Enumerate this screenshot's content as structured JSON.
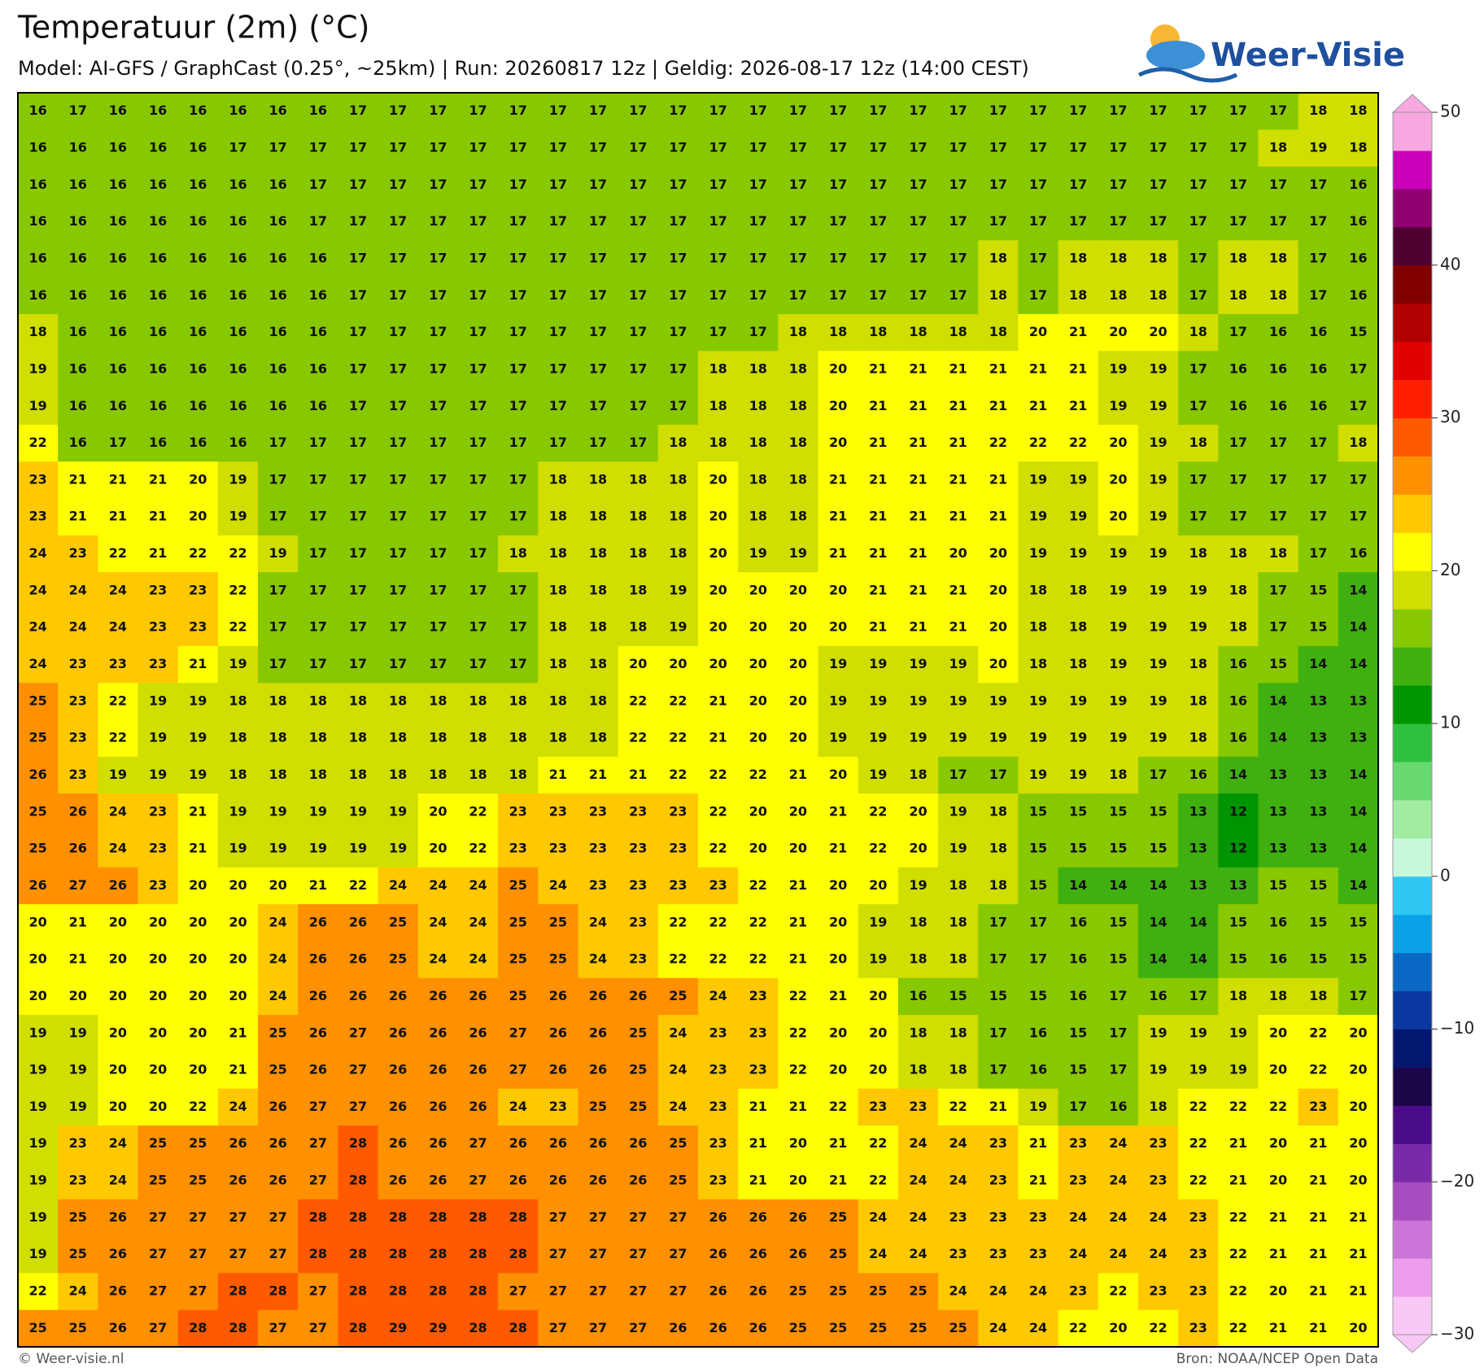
{
  "chart_data": {
    "type": "heatmap",
    "title": "Temperatuur (2m) (°C)",
    "subtitle": "Model: AI-GFS / GraphCast (0.25°, ~25km)  |  Run: 20260817 12z  |  Geldig: 2026-08-17 12z (14:00 CEST)",
    "values": [
      [
        16,
        17,
        16,
        16,
        16,
        16,
        16,
        16,
        17,
        17,
        17,
        17,
        17,
        17,
        17,
        17,
        17,
        17,
        17,
        17,
        17,
        17,
        17,
        17,
        17,
        17,
        17,
        17,
        17,
        17,
        17,
        17,
        18,
        18
      ],
      [
        16,
        16,
        16,
        16,
        16,
        17,
        17,
        17,
        17,
        17,
        17,
        17,
        17,
        17,
        17,
        17,
        17,
        17,
        17,
        17,
        17,
        17,
        17,
        17,
        17,
        17,
        17,
        17,
        17,
        17,
        17,
        18,
        19,
        18
      ],
      [
        16,
        16,
        16,
        16,
        16,
        16,
        16,
        17,
        17,
        17,
        17,
        17,
        17,
        17,
        17,
        17,
        17,
        17,
        17,
        17,
        17,
        17,
        17,
        17,
        17,
        17,
        17,
        17,
        17,
        17,
        17,
        17,
        17,
        16
      ],
      [
        16,
        16,
        16,
        16,
        16,
        16,
        16,
        17,
        17,
        17,
        17,
        17,
        17,
        17,
        17,
        17,
        17,
        17,
        17,
        17,
        17,
        17,
        17,
        17,
        17,
        17,
        17,
        17,
        17,
        17,
        17,
        17,
        17,
        16
      ],
      [
        16,
        16,
        16,
        16,
        16,
        16,
        16,
        16,
        17,
        17,
        17,
        17,
        17,
        17,
        17,
        17,
        17,
        17,
        17,
        17,
        17,
        17,
        17,
        17,
        18,
        17,
        18,
        18,
        18,
        17,
        18,
        18,
        17,
        16
      ],
      [
        16,
        16,
        16,
        16,
        16,
        16,
        16,
        16,
        17,
        17,
        17,
        17,
        17,
        17,
        17,
        17,
        17,
        17,
        17,
        17,
        17,
        17,
        17,
        17,
        18,
        17,
        18,
        18,
        18,
        17,
        18,
        18,
        17,
        16
      ],
      [
        18,
        16,
        16,
        16,
        16,
        16,
        16,
        16,
        17,
        17,
        17,
        17,
        17,
        17,
        17,
        17,
        17,
        17,
        17,
        18,
        18,
        18,
        18,
        18,
        18,
        20,
        21,
        20,
        20,
        18,
        17,
        16,
        16,
        15
      ],
      [
        19,
        16,
        16,
        16,
        16,
        16,
        16,
        16,
        17,
        17,
        17,
        17,
        17,
        17,
        17,
        17,
        17,
        18,
        18,
        18,
        20,
        21,
        21,
        21,
        21,
        21,
        21,
        19,
        19,
        17,
        16,
        16,
        16,
        17
      ],
      [
        19,
        16,
        16,
        16,
        16,
        16,
        16,
        16,
        17,
        17,
        17,
        17,
        17,
        17,
        17,
        17,
        17,
        18,
        18,
        18,
        20,
        21,
        21,
        21,
        21,
        21,
        21,
        19,
        19,
        17,
        16,
        16,
        16,
        17
      ],
      [
        22,
        16,
        17,
        16,
        16,
        16,
        17,
        17,
        17,
        17,
        17,
        17,
        17,
        17,
        17,
        17,
        18,
        18,
        18,
        18,
        20,
        21,
        21,
        21,
        22,
        22,
        22,
        20,
        19,
        18,
        17,
        17,
        17,
        18
      ],
      [
        23,
        21,
        21,
        21,
        20,
        19,
        17,
        17,
        17,
        17,
        17,
        17,
        17,
        18,
        18,
        18,
        18,
        20,
        18,
        18,
        21,
        21,
        21,
        21,
        21,
        19,
        19,
        20,
        19,
        17,
        17,
        17,
        17,
        17
      ],
      [
        23,
        21,
        21,
        21,
        20,
        19,
        17,
        17,
        17,
        17,
        17,
        17,
        17,
        18,
        18,
        18,
        18,
        20,
        18,
        18,
        21,
        21,
        21,
        21,
        21,
        19,
        19,
        20,
        19,
        17,
        17,
        17,
        17,
        17
      ],
      [
        24,
        23,
        22,
        21,
        22,
        22,
        19,
        17,
        17,
        17,
        17,
        17,
        18,
        18,
        18,
        18,
        18,
        20,
        19,
        19,
        21,
        21,
        21,
        20,
        20,
        19,
        19,
        19,
        19,
        18,
        18,
        18,
        17,
        16
      ],
      [
        24,
        24,
        24,
        23,
        23,
        22,
        17,
        17,
        17,
        17,
        17,
        17,
        17,
        18,
        18,
        18,
        19,
        20,
        20,
        20,
        20,
        21,
        21,
        21,
        20,
        18,
        18,
        19,
        19,
        19,
        18,
        17,
        15,
        14
      ],
      [
        24,
        24,
        24,
        23,
        23,
        22,
        17,
        17,
        17,
        17,
        17,
        17,
        17,
        18,
        18,
        18,
        19,
        20,
        20,
        20,
        20,
        21,
        21,
        21,
        20,
        18,
        18,
        19,
        19,
        19,
        18,
        17,
        15,
        14
      ],
      [
        24,
        23,
        23,
        23,
        21,
        19,
        17,
        17,
        17,
        17,
        17,
        17,
        17,
        18,
        18,
        20,
        20,
        20,
        20,
        20,
        19,
        19,
        19,
        19,
        20,
        18,
        18,
        19,
        19,
        18,
        16,
        15,
        14,
        14
      ],
      [
        25,
        23,
        22,
        19,
        19,
        18,
        18,
        18,
        18,
        18,
        18,
        18,
        18,
        18,
        18,
        22,
        22,
        21,
        20,
        20,
        19,
        19,
        19,
        19,
        19,
        19,
        19,
        19,
        19,
        18,
        16,
        14,
        13,
        13
      ],
      [
        25,
        23,
        22,
        19,
        19,
        18,
        18,
        18,
        18,
        18,
        18,
        18,
        18,
        18,
        18,
        22,
        22,
        21,
        20,
        20,
        19,
        19,
        19,
        19,
        19,
        19,
        19,
        19,
        19,
        18,
        16,
        14,
        13,
        13
      ],
      [
        26,
        23,
        19,
        19,
        19,
        18,
        18,
        18,
        18,
        18,
        18,
        18,
        18,
        21,
        21,
        21,
        22,
        22,
        22,
        21,
        20,
        19,
        18,
        17,
        17,
        19,
        19,
        18,
        17,
        16,
        14,
        13,
        13,
        14
      ],
      [
        25,
        26,
        24,
        23,
        21,
        19,
        19,
        19,
        19,
        19,
        20,
        22,
        23,
        23,
        23,
        23,
        23,
        22,
        20,
        20,
        21,
        22,
        20,
        19,
        18,
        15,
        15,
        15,
        15,
        13,
        12,
        13,
        13,
        14
      ],
      [
        25,
        26,
        24,
        23,
        21,
        19,
        19,
        19,
        19,
        19,
        20,
        22,
        23,
        23,
        23,
        23,
        23,
        22,
        20,
        20,
        21,
        22,
        20,
        19,
        18,
        15,
        15,
        15,
        15,
        13,
        12,
        13,
        13,
        14
      ],
      [
        26,
        27,
        26,
        23,
        20,
        20,
        20,
        21,
        22,
        24,
        24,
        24,
        25,
        24,
        23,
        23,
        23,
        23,
        22,
        21,
        20,
        20,
        19,
        18,
        18,
        15,
        14,
        14,
        14,
        13,
        13,
        15,
        15,
        14
      ],
      [
        20,
        21,
        20,
        20,
        20,
        20,
        24,
        26,
        26,
        25,
        24,
        24,
        25,
        25,
        24,
        23,
        22,
        22,
        22,
        21,
        20,
        19,
        18,
        18,
        17,
        17,
        16,
        15,
        14,
        14,
        15,
        16,
        15,
        15
      ],
      [
        20,
        21,
        20,
        20,
        20,
        20,
        24,
        26,
        26,
        25,
        24,
        24,
        25,
        25,
        24,
        23,
        22,
        22,
        22,
        21,
        20,
        19,
        18,
        18,
        17,
        17,
        16,
        15,
        14,
        14,
        15,
        16,
        15,
        15
      ],
      [
        20,
        20,
        20,
        20,
        20,
        20,
        24,
        26,
        26,
        26,
        26,
        26,
        25,
        26,
        26,
        26,
        25,
        24,
        23,
        22,
        21,
        20,
        16,
        15,
        15,
        15,
        16,
        17,
        16,
        17,
        18,
        18,
        18,
        17
      ],
      [
        19,
        19,
        20,
        20,
        20,
        21,
        25,
        26,
        27,
        26,
        26,
        26,
        27,
        26,
        26,
        25,
        24,
        23,
        23,
        22,
        20,
        20,
        18,
        18,
        17,
        16,
        15,
        17,
        19,
        19,
        19,
        20,
        22,
        20
      ],
      [
        19,
        19,
        20,
        20,
        20,
        21,
        25,
        26,
        27,
        26,
        26,
        26,
        27,
        26,
        26,
        25,
        24,
        23,
        23,
        22,
        20,
        20,
        18,
        18,
        17,
        16,
        15,
        17,
        19,
        19,
        19,
        20,
        22,
        20
      ],
      [
        19,
        19,
        20,
        20,
        22,
        24,
        26,
        27,
        27,
        26,
        26,
        26,
        24,
        23,
        25,
        25,
        24,
        23,
        21,
        21,
        22,
        23,
        23,
        22,
        21,
        19,
        17,
        16,
        18,
        22,
        22,
        22,
        23,
        20
      ],
      [
        19,
        23,
        24,
        25,
        25,
        26,
        26,
        27,
        28,
        26,
        26,
        27,
        26,
        26,
        26,
        26,
        25,
        23,
        21,
        20,
        21,
        22,
        24,
        24,
        23,
        21,
        23,
        24,
        23,
        22,
        21,
        20,
        21,
        20
      ],
      [
        19,
        23,
        24,
        25,
        25,
        26,
        26,
        27,
        28,
        26,
        26,
        27,
        26,
        26,
        26,
        26,
        25,
        23,
        21,
        20,
        21,
        22,
        24,
        24,
        23,
        21,
        23,
        24,
        23,
        22,
        21,
        20,
        21,
        20
      ],
      [
        19,
        25,
        26,
        27,
        27,
        27,
        27,
        28,
        28,
        28,
        28,
        28,
        28,
        27,
        27,
        27,
        27,
        26,
        26,
        26,
        25,
        24,
        24,
        23,
        23,
        23,
        24,
        24,
        24,
        23,
        22,
        21,
        21,
        21
      ],
      [
        19,
        25,
        26,
        27,
        27,
        27,
        27,
        28,
        28,
        28,
        28,
        28,
        28,
        27,
        27,
        27,
        27,
        26,
        26,
        26,
        25,
        24,
        24,
        23,
        23,
        23,
        24,
        24,
        24,
        23,
        22,
        21,
        21,
        21
      ],
      [
        22,
        24,
        26,
        27,
        27,
        28,
        28,
        27,
        28,
        28,
        28,
        28,
        27,
        27,
        27,
        27,
        27,
        26,
        26,
        25,
        25,
        25,
        25,
        24,
        24,
        24,
        23,
        22,
        23,
        23,
        22,
        20,
        21,
        21
      ],
      [
        25,
        25,
        26,
        27,
        28,
        28,
        27,
        27,
        28,
        29,
        29,
        28,
        28,
        27,
        27,
        27,
        26,
        26,
        26,
        25,
        25,
        25,
        25,
        25,
        24,
        24,
        22,
        20,
        22,
        23,
        22,
        21,
        21,
        20
      ]
    ],
    "clim": [
      -30,
      50
    ],
    "cticks": [
      50,
      40,
      30,
      20,
      10,
      0,
      {
        "value": -10,
        "label": "−10"
      },
      {
        "value": -20,
        "label": "−20"
      },
      {
        "value": -30,
        "label": "−30"
      }
    ],
    "colors": [
      "#f8c8f4",
      "#ec9eec",
      "#cc74d8",
      "#a84cc0",
      "#7a2aa8",
      "#4a0c88",
      "#1a0648",
      "#041870",
      "#0838a0",
      "#0a68c4",
      "#0aa0e6",
      "#30c6f4",
      "#c8f8dc",
      "#a0eca0",
      "#68d870",
      "#30c040",
      "#009400",
      "#40b010",
      "#88c800",
      "#d0de00",
      "#ffff00",
      "#ffc800",
      "#ff9000",
      "#ff5a00",
      "#ff2000",
      "#e00000",
      "#b00000",
      "#800000",
      "#500030",
      "#900070",
      "#c800b8",
      "#f8a8e0"
    ]
  },
  "logo": "Weer-Visie",
  "footer": {
    "left": "© Weer-visie.nl",
    "right": "Bron: NOAA/NCEP Open Data"
  }
}
